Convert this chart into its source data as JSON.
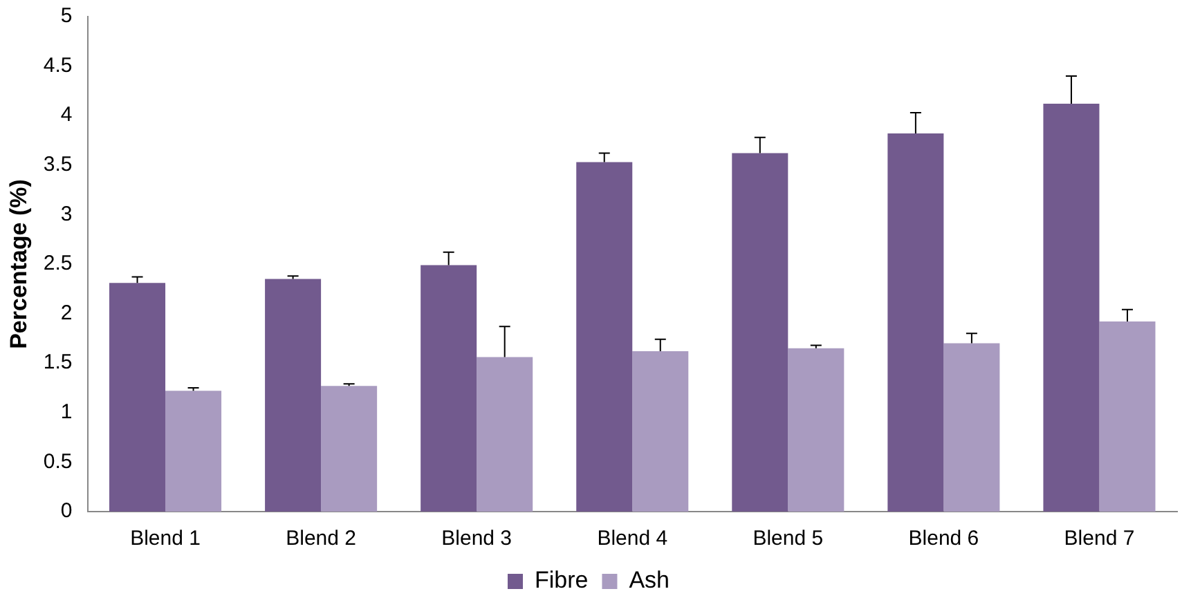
{
  "chart_data": {
    "type": "bar",
    "ylabel": "Percentage (%)",
    "categories": [
      "Blend 1",
      "Blend 2",
      "Blend 3",
      "Blend 4",
      "Blend 5",
      "Blend 6",
      "Blend 7"
    ],
    "series": [
      {
        "name": "Fibre",
        "color": "#725a8e",
        "values": [
          2.31,
          2.35,
          2.49,
          3.53,
          3.62,
          3.82,
          4.12
        ],
        "errors": [
          [
            2.31,
            2.37
          ],
          [
            2.35,
            2.38
          ],
          [
            2.49,
            2.62
          ],
          [
            3.53,
            3.62
          ],
          [
            3.62,
            3.78
          ],
          [
            3.82,
            4.03
          ],
          [
            4.12,
            4.4
          ]
        ]
      },
      {
        "name": "Ash",
        "color": "#a99bc0",
        "values": [
          1.22,
          1.27,
          1.56,
          1.62,
          1.65,
          1.7,
          1.92
        ],
        "errors": [
          [
            1.22,
            1.25
          ],
          [
            1.27,
            1.29
          ],
          [
            1.56,
            1.87
          ],
          [
            1.62,
            1.74
          ],
          [
            1.65,
            1.68
          ],
          [
            1.7,
            1.8
          ],
          [
            1.92,
            2.04
          ]
        ]
      }
    ],
    "ylim": [
      0,
      5
    ],
    "yticks": [
      0,
      0.5,
      1,
      1.5,
      2,
      2.5,
      3,
      3.5,
      4,
      4.5,
      5
    ],
    "legend": "bottom"
  }
}
